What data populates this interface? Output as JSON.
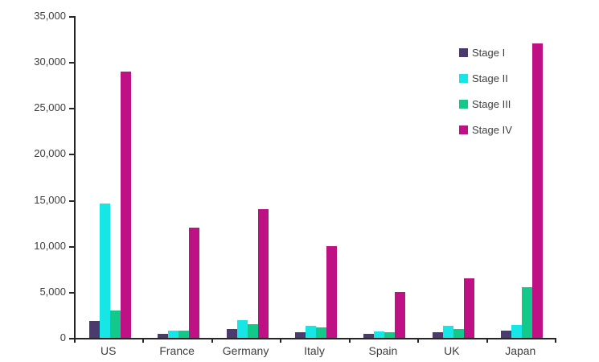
{
  "chart_data": {
    "type": "bar",
    "categories": [
      "US",
      "France",
      "Germany",
      "Italy",
      "Spain",
      "UK",
      "Japan"
    ],
    "series": [
      {
        "name": "Stage I",
        "color": "#4B3A6E",
        "values": [
          1800,
          400,
          1000,
          600,
          400,
          600,
          800
        ]
      },
      {
        "name": "Stage II",
        "color": "#16E6E6",
        "values": [
          14600,
          800,
          1900,
          1300,
          700,
          1300,
          1400
        ]
      },
      {
        "name": "Stage III",
        "color": "#12C98A",
        "values": [
          3000,
          800,
          1500,
          1100,
          600,
          1000,
          5500
        ]
      },
      {
        "name": "Stage IV",
        "color": "#BE1284",
        "values": [
          29000,
          12000,
          14000,
          10000,
          5000,
          6500,
          32000
        ]
      }
    ],
    "title": "",
    "xlabel": "",
    "ylabel": "",
    "ylim": [
      0,
      35000
    ],
    "ytick_step": 5000,
    "ytick_labels": [
      "0",
      "5,000",
      "10,000",
      "15,000",
      "20,000",
      "25,000",
      "30,000",
      "35,000"
    ],
    "grid": false,
    "legend_position": "upper-right-of-center"
  },
  "colors": {
    "axis": "#262626",
    "text": "#3E3E3E",
    "background": "#FFFFFF"
  }
}
